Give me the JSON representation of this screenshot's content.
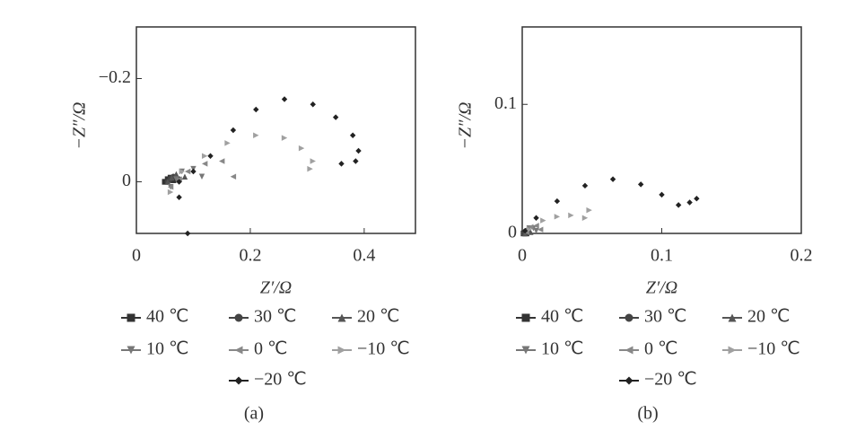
{
  "chart_data": [
    {
      "type": "scatter",
      "caption": "(a)",
      "x_label": "Z′/Ω",
      "y_label": "−Z″/Ω",
      "xlim": [
        0,
        0.49
      ],
      "xticks": [
        0,
        0.2,
        0.4
      ],
      "ylim": [
        0.1,
        -0.3
      ],
      "yticks": [
        {
          "value": -0.2,
          "label": "−0.2"
        },
        0
      ],
      "series": [
        {
          "name": "40 ℃",
          "color": "#333333",
          "marker": "square",
          "x": [
            0.05,
            0.055,
            0.06,
            0.065
          ],
          "values": [
            0.0,
            -0.005,
            -0.008,
            -0.003
          ]
        },
        {
          "name": "30 ℃",
          "color": "#444444",
          "marker": "circle",
          "x": [
            0.055,
            0.06,
            0.065,
            0.075
          ],
          "values": [
            0.0,
            -0.006,
            -0.01,
            -0.005
          ]
        },
        {
          "name": "20 ℃",
          "color": "#555555",
          "marker": "triangle-up",
          "x": [
            0.055,
            0.062,
            0.07,
            0.085
          ],
          "values": [
            0.0,
            -0.008,
            -0.015,
            -0.01
          ]
        },
        {
          "name": "10 ℃",
          "color": "#777777",
          "marker": "triangle-down",
          "x": [
            0.06,
            0.07,
            0.08,
            0.1,
            0.115
          ],
          "values": [
            0.01,
            -0.005,
            -0.02,
            -0.025,
            -0.01
          ]
        },
        {
          "name": "0 ℃",
          "color": "#888888",
          "marker": "triangle-left",
          "x": [
            0.06,
            0.075,
            0.09,
            0.12,
            0.15,
            0.17
          ],
          "values": [
            0.01,
            -0.005,
            -0.02,
            -0.035,
            -0.04,
            -0.01
          ]
        },
        {
          "name": "−10 ℃",
          "color": "#a0a0a0",
          "marker": "triangle-right",
          "x": [
            0.06,
            0.08,
            0.12,
            0.16,
            0.21,
            0.26,
            0.29,
            0.31,
            0.305
          ],
          "values": [
            0.02,
            -0.02,
            -0.05,
            -0.075,
            -0.09,
            -0.085,
            -0.065,
            -0.04,
            -0.025
          ]
        },
        {
          "name": "−20 ℃",
          "color": "#222222",
          "marker": "diamond",
          "x": [
            0.09,
            0.075,
            0.075,
            0.1,
            0.13,
            0.17,
            0.21,
            0.26,
            0.31,
            0.35,
            0.38,
            0.39,
            0.385,
            0.36
          ],
          "values": [
            0.1,
            0.03,
            0.0,
            -0.02,
            -0.05,
            -0.1,
            -0.14,
            -0.16,
            -0.15,
            -0.125,
            -0.09,
            -0.06,
            -0.04,
            -0.035
          ]
        }
      ]
    },
    {
      "type": "scatter",
      "caption": "(b)",
      "x_label": "Z′/Ω",
      "y_label": "−Z″/Ω",
      "xlim": [
        0,
        0.2
      ],
      "xticks": [
        0,
        0.1,
        0.2
      ],
      "ylim": [
        0,
        0.16
      ],
      "yticks": [
        0,
        0.1
      ],
      "series": [
        {
          "name": "40 ℃",
          "color": "#333333",
          "marker": "square",
          "x": [
            0.001,
            0.002,
            0.003
          ],
          "values": [
            0.0,
            0.001,
            0.0
          ]
        },
        {
          "name": "30 ℃",
          "color": "#444444",
          "marker": "circle",
          "x": [
            0.001,
            0.003,
            0.004
          ],
          "values": [
            0.0,
            0.002,
            0.001
          ]
        },
        {
          "name": "20 ℃",
          "color": "#555555",
          "marker": "triangle-up",
          "x": [
            0.002,
            0.004,
            0.006
          ],
          "values": [
            0.0,
            0.003,
            0.001
          ]
        },
        {
          "name": "10 ℃",
          "color": "#777777",
          "marker": "triangle-down",
          "x": [
            0.002,
            0.005,
            0.008,
            0.01
          ],
          "values": [
            0.001,
            0.004,
            0.004,
            0.002
          ]
        },
        {
          "name": "0 ℃",
          "color": "#888888",
          "marker": "triangle-left",
          "x": [
            0.003,
            0.006,
            0.01,
            0.013
          ],
          "values": [
            0.001,
            0.005,
            0.006,
            0.003
          ]
        },
        {
          "name": "−10 ℃",
          "color": "#a0a0a0",
          "marker": "triangle-right",
          "x": [
            0.005,
            0.015,
            0.025,
            0.035,
            0.045,
            0.048
          ],
          "values": [
            0.003,
            0.01,
            0.013,
            0.014,
            0.012,
            0.018
          ]
        },
        {
          "name": "−20 ℃",
          "color": "#222222",
          "marker": "diamond",
          "x": [
            0.002,
            0.01,
            0.025,
            0.045,
            0.065,
            0.085,
            0.1,
            0.112,
            0.12,
            0.125
          ],
          "values": [
            0.002,
            0.012,
            0.025,
            0.037,
            0.042,
            0.038,
            0.03,
            0.022,
            0.024,
            0.027
          ]
        }
      ]
    }
  ]
}
